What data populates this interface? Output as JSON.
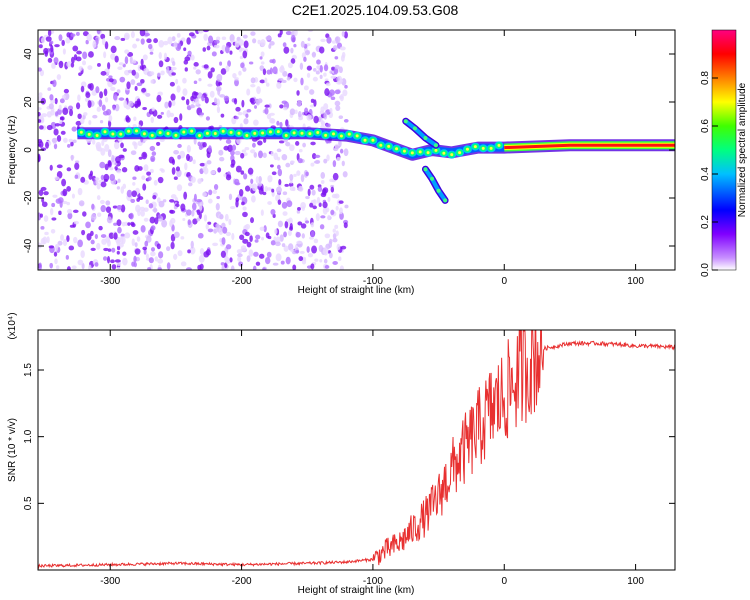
{
  "title": "C2E1.2025.104.09.53.G08",
  "chart_data": [
    {
      "type": "heatmap",
      "xlabel": "Height of straight line (km)",
      "ylabel": "Frequency (Hz)",
      "xlim": [
        -355,
        130
      ],
      "ylim": [
        -50,
        50
      ],
      "xticks": [
        -300,
        -200,
        -100,
        0,
        100
      ],
      "yticks": [
        -40,
        -20,
        0,
        20,
        40
      ],
      "colorbar": {
        "label": "Normalized spectral amplitude",
        "range": [
          0,
          1
        ],
        "ticks": [
          "0.0",
          "0.2",
          "0.4",
          "0.6",
          "0.8"
        ],
        "colors": [
          "#ffffff",
          "#8000ff",
          "#0000ff",
          "#00ffff",
          "#00ff00",
          "#ffff00",
          "#ff8000",
          "#ff0000",
          "#ff0080"
        ]
      },
      "main_ridge": [
        {
          "x": -325,
          "y": 7
        },
        {
          "x": -250,
          "y": 7
        },
        {
          "x": -200,
          "y": 7
        },
        {
          "x": -150,
          "y": 7
        },
        {
          "x": -120,
          "y": 6
        },
        {
          "x": -100,
          "y": 4
        },
        {
          "x": -85,
          "y": 1
        },
        {
          "x": -70,
          "y": -2
        },
        {
          "x": -55,
          "y": 0
        },
        {
          "x": -40,
          "y": -1
        },
        {
          "x": -20,
          "y": 1
        },
        {
          "x": 0,
          "y": 1
        },
        {
          "x": 50,
          "y": 2
        },
        {
          "x": 90,
          "y": 2
        },
        {
          "x": 130,
          "y": 2
        }
      ],
      "branches": [
        [
          {
            "x": -75,
            "y": 12
          },
          {
            "x": -68,
            "y": 9
          },
          {
            "x": -60,
            "y": 5
          },
          {
            "x": -52,
            "y": 2
          }
        ],
        [
          {
            "x": -60,
            "y": -8
          },
          {
            "x": -55,
            "y": -12
          },
          {
            "x": -50,
            "y": -17
          },
          {
            "x": -45,
            "y": -21
          }
        ]
      ],
      "noise_region_x": [
        -355,
        -120
      ]
    },
    {
      "type": "line",
      "xlabel": "Height of straight line (km)",
      "ylabel": "SNR (10 * v/v)",
      "scale_label": "(x10⁴)",
      "xlim": [
        -355,
        130
      ],
      "ylim": [
        0,
        1.8
      ],
      "xticks": [
        -300,
        -200,
        -100,
        0,
        100
      ],
      "yticks": [
        0.5,
        1.0,
        1.5
      ],
      "series": [
        {
          "color": "#e83030",
          "x": [
            -355,
            -300,
            -250,
            -200,
            -150,
            -120,
            -100,
            -90,
            -80,
            -70,
            -60,
            -50,
            -40,
            -30,
            -20,
            -10,
            0,
            10,
            20,
            30,
            50,
            70,
            90,
            100,
            110,
            130
          ],
          "y": [
            0.03,
            0.04,
            0.05,
            0.04,
            0.05,
            0.06,
            0.08,
            0.15,
            0.2,
            0.3,
            0.4,
            0.55,
            0.75,
            0.9,
            1.05,
            1.2,
            1.3,
            1.45,
            1.58,
            1.66,
            1.7,
            1.7,
            1.69,
            1.68,
            1.68,
            1.67
          ]
        }
      ]
    }
  ]
}
